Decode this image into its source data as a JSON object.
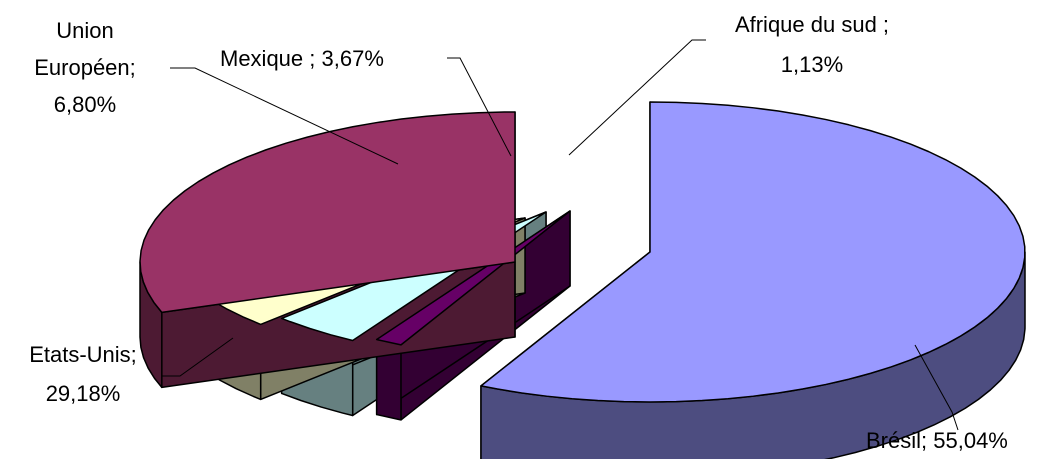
{
  "chart_data": {
    "type": "pie",
    "style": "3d-exploded",
    "title": "",
    "slices": [
      {
        "name": "Brésil",
        "value": 55.04,
        "label_name": "Brésil;",
        "label_value": "55,04%",
        "color": "#9999FF",
        "side_color": "#4D4D80"
      },
      {
        "name": "Afrique du sud",
        "value": 1.13,
        "label_name": "Afrique du sud ;",
        "label_value": "1,13%",
        "color": "#660066",
        "side_color": "#330033"
      },
      {
        "name": "Mexique",
        "value": 3.67,
        "label_name": "Mexique ;",
        "label_value": "3,67%",
        "color": "#CCFFFF",
        "side_color": "#668080"
      },
      {
        "name": "Union Européen",
        "value": 6.8,
        "label_name": "Union Européen;",
        "label_value": "6,80%",
        "color": "#FFFFCC",
        "side_color": "#808066"
      },
      {
        "name": "Etats-Unis",
        "value": 29.18,
        "label_name": "Etats-Unis;",
        "label_value": "29,18%",
        "color": "#993366",
        "side_color": "#4D1A33"
      }
    ]
  }
}
